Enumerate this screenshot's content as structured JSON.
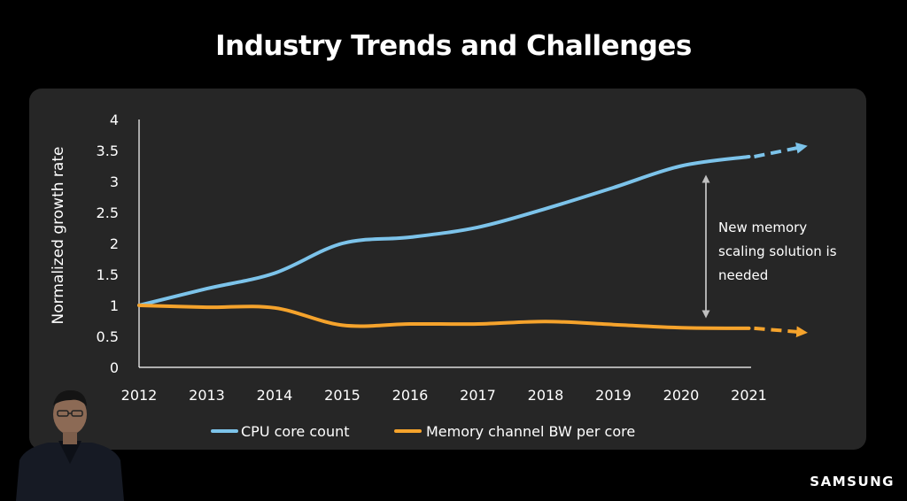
{
  "slide": {
    "title": "Industry Trends and Challenges",
    "brand": "SAMSUNG"
  },
  "chart_data": {
    "type": "line",
    "title": "Industry Trends and Challenges",
    "xlabel": "",
    "ylabel": "Normalized growth rate",
    "categories": [
      "2012",
      "2013",
      "2014",
      "2015",
      "2016",
      "2017",
      "2018",
      "2019",
      "2020",
      "2021"
    ],
    "y_ticks": [
      "0",
      "0.5",
      "1",
      "1.5",
      "2",
      "2.5",
      "3",
      "3.5",
      "4"
    ],
    "ylim": [
      0,
      4
    ],
    "grid": false,
    "series": [
      {
        "name": "CPU core count",
        "color": "#7cc3ea",
        "values": [
          1.0,
          1.27,
          1.52,
          2.0,
          2.1,
          2.26,
          2.56,
          2.9,
          3.25,
          3.4
        ],
        "extrapolated_to": 3.55
      },
      {
        "name": "Memory channel BW per core",
        "color": "#f5a32c",
        "values": [
          1.0,
          0.97,
          0.96,
          0.68,
          0.7,
          0.7,
          0.74,
          0.69,
          0.64,
          0.63
        ],
        "extrapolated_to": 0.57
      }
    ],
    "annotation": {
      "lines": [
        "New memory",
        "scaling solution is",
        "needed"
      ]
    },
    "legend_position": "bottom-center"
  }
}
